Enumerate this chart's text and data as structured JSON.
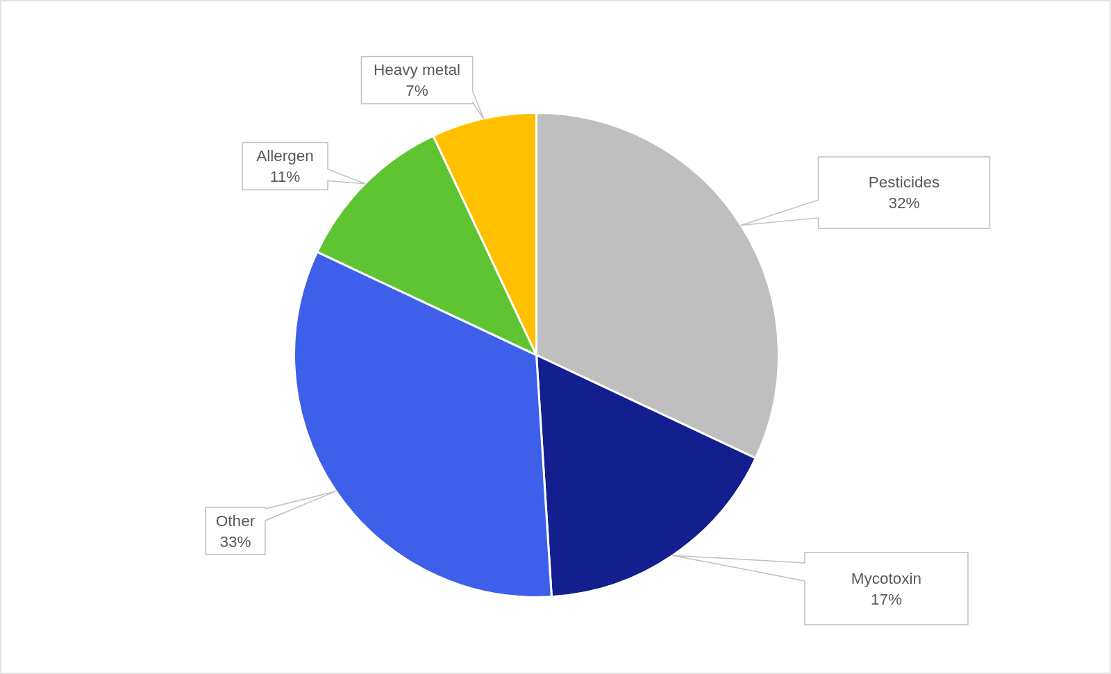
{
  "chart_data": {
    "type": "pie",
    "categories": [
      "Pesticides",
      "Mycotoxin",
      "Other",
      "Allergen",
      "Heavy metal"
    ],
    "values": [
      32,
      17,
      33,
      11,
      7
    ],
    "colors": [
      "#bfbfbf",
      "#131f8f",
      "#3d5fe9",
      "#5fc431",
      "#ffc000"
    ],
    "value_labels": [
      "32%",
      "17%",
      "33%",
      "11%",
      "7%"
    ]
  }
}
